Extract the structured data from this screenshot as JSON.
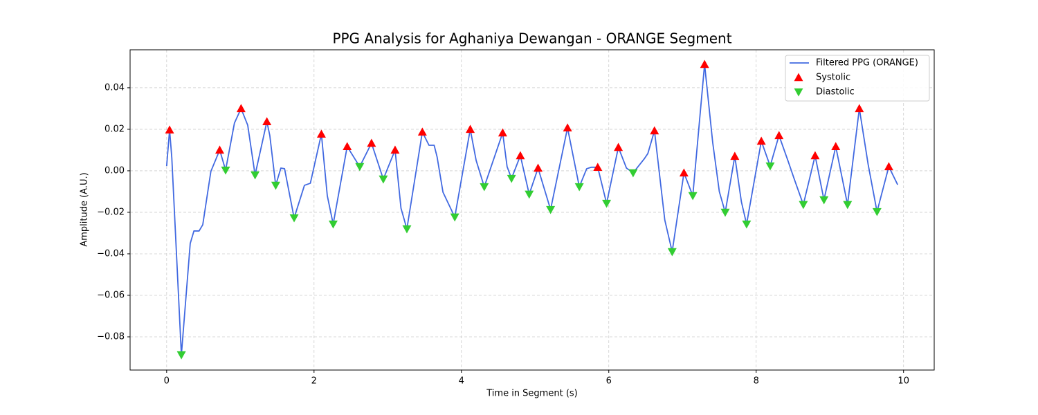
{
  "chart_data": {
    "type": "line",
    "title": "PPG Analysis for Aghaniya Dewangan - ORANGE Segment",
    "x_label": "Time in Segment (s)",
    "y_label": "Amplitude (A.U.)",
    "xlim": [
      -0.496,
      10.416
    ],
    "ylim": [
      -0.096,
      0.0583
    ],
    "xticks": [
      0,
      2,
      4,
      6,
      8,
      10
    ],
    "yticks": [
      {
        "value": -0.08,
        "label": "−0.08"
      },
      {
        "value": -0.06,
        "label": "−0.06"
      },
      {
        "value": -0.04,
        "label": "−0.04"
      },
      {
        "value": -0.02,
        "label": "−0.02"
      },
      {
        "value": 0,
        "label": "0.00"
      },
      0.02,
      0.04
    ],
    "grid": true,
    "legend": "upper right",
    "series": [
      {
        "name": "Filtered PPG (ORANGE)",
        "color": "#4169e1",
        "marker": "none",
        "x": [
          0,
          0.04,
          0.07,
          0.2,
          0.32,
          0.37,
          0.44,
          0.49,
          0.6,
          0.72,
          0.8,
          0.92,
          1.01,
          1.1,
          1.2,
          1.36,
          1.4,
          1.48,
          1.55,
          1.6,
          1.73,
          1.87,
          1.95,
          2.1,
          2.18,
          2.26,
          2.45,
          2.62,
          2.78,
          2.94,
          3.1,
          3.18,
          3.26,
          3.47,
          3.56,
          3.63,
          3.67,
          3.75,
          3.91,
          4.12,
          4.2,
          4.31,
          4.56,
          4.62,
          4.68,
          4.8,
          4.92,
          5.04,
          5.21,
          5.44,
          5.6,
          5.7,
          5.76,
          5.85,
          5.97,
          6.13,
          6.24,
          6.33,
          6.48,
          6.53,
          6.62,
          6.76,
          6.86,
          7.02,
          7.14,
          7.3,
          7.41,
          7.5,
          7.58,
          7.71,
          7.8,
          7.87,
          8.07,
          8.19,
          8.31,
          8.43,
          8.52,
          8.64,
          8.8,
          8.92,
          9.08,
          9.24,
          9.4,
          9.52,
          9.64,
          9.8,
          9.92
        ],
        "values": [
          0.0023,
          0.0197,
          0.0063,
          -0.0887,
          -0.035,
          -0.029,
          -0.029,
          -0.026,
          -0.0003,
          0.01,
          0.0003,
          0.023,
          0.03,
          0.022,
          -0.002,
          0.0237,
          0.017,
          -0.007,
          0.0013,
          0.001,
          -0.0227,
          -0.007,
          -0.006,
          0.0177,
          -0.012,
          -0.0257,
          0.0117,
          0.002,
          0.0133,
          -0.004,
          0.01,
          -0.018,
          -0.028,
          0.0187,
          0.0123,
          0.0123,
          0.0067,
          -0.0103,
          -0.0223,
          0.02,
          0.005,
          -0.0077,
          0.0183,
          0.002,
          -0.0037,
          0.0073,
          -0.0113,
          0.0013,
          -0.0187,
          0.0207,
          -0.0077,
          0.001,
          0.0017,
          0.0017,
          -0.0157,
          0.0113,
          0.0013,
          -0.001,
          0.0057,
          0.0083,
          0.0193,
          -0.0237,
          -0.039,
          -0.001,
          -0.012,
          0.0513,
          0.0137,
          -0.01,
          -0.02,
          0.007,
          -0.015,
          -0.0257,
          0.0143,
          0.0023,
          0.017,
          0.005,
          -0.0043,
          -0.0163,
          0.0073,
          -0.014,
          0.0117,
          -0.0163,
          0.03,
          0.003,
          -0.0197,
          0.002,
          -0.0067
        ]
      },
      {
        "name": "Systolic",
        "color": "#ff0000",
        "marker": "triangle-up",
        "x": [
          0.04,
          0.72,
          1.01,
          1.36,
          2.1,
          2.45,
          2.78,
          3.1,
          3.47,
          4.12,
          4.56,
          4.8,
          5.04,
          5.44,
          5.85,
          6.13,
          6.62,
          7.02,
          7.3,
          7.71,
          8.07,
          8.31,
          8.8,
          9.08,
          9.4,
          9.8
        ],
        "values": [
          0.0197,
          0.01,
          0.03,
          0.0237,
          0.0177,
          0.0117,
          0.0133,
          0.01,
          0.0187,
          0.02,
          0.0183,
          0.0073,
          0.0013,
          0.0207,
          0.0017,
          0.0113,
          0.0193,
          -0.001,
          0.0513,
          0.007,
          0.0143,
          0.017,
          0.0073,
          0.0117,
          0.03,
          0.002
        ]
      },
      {
        "name": "Diastolic",
        "color": "#32cd32",
        "marker": "triangle-down",
        "x": [
          0.2,
          0.8,
          1.2,
          1.48,
          1.73,
          2.26,
          2.62,
          2.94,
          3.26,
          3.91,
          4.31,
          4.68,
          4.92,
          5.21,
          5.6,
          5.97,
          6.33,
          6.86,
          7.14,
          7.58,
          7.87,
          8.19,
          8.64,
          8.92,
          9.24,
          9.64
        ],
        "values": [
          -0.0887,
          0.0003,
          -0.002,
          -0.007,
          -0.0227,
          -0.0257,
          0.002,
          -0.004,
          -0.028,
          -0.0223,
          -0.0077,
          -0.0037,
          -0.0113,
          -0.0187,
          -0.0077,
          -0.0157,
          -0.001,
          -0.039,
          -0.012,
          -0.02,
          -0.0257,
          0.0023,
          -0.0163,
          -0.014,
          -0.0163,
          -0.0197
        ]
      }
    ]
  }
}
